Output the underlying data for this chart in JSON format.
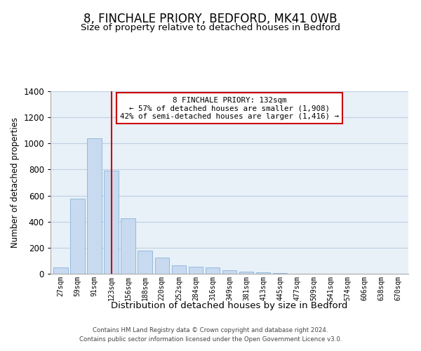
{
  "title": "8, FINCHALE PRIORY, BEDFORD, MK41 0WB",
  "subtitle": "Size of property relative to detached houses in Bedford",
  "xlabel": "Distribution of detached houses by size in Bedford",
  "ylabel": "Number of detached properties",
  "bar_labels": [
    "27sqm",
    "59sqm",
    "91sqm",
    "123sqm",
    "156sqm",
    "188sqm",
    "220sqm",
    "252sqm",
    "284sqm",
    "316sqm",
    "349sqm",
    "381sqm",
    "413sqm",
    "445sqm",
    "477sqm",
    "509sqm",
    "541sqm",
    "574sqm",
    "606sqm",
    "638sqm",
    "670sqm"
  ],
  "bar_values": [
    50,
    575,
    1040,
    790,
    425,
    178,
    125,
    65,
    55,
    50,
    25,
    18,
    10,
    5,
    2,
    0,
    0,
    0,
    0,
    0,
    0
  ],
  "bar_color": "#c8daf0",
  "bar_edgecolor": "#8ab4d8",
  "property_line_x": 3.0,
  "property_line_color": "#cc0000",
  "ylim": [
    0,
    1400
  ],
  "yticks": [
    0,
    200,
    400,
    600,
    800,
    1000,
    1200,
    1400
  ],
  "annotation_title": "8 FINCHALE PRIORY: 132sqm",
  "annotation_line1": "← 57% of detached houses are smaller (1,908)",
  "annotation_line2": "42% of semi-detached houses are larger (1,416) →",
  "annotation_box_color": "#ffffff",
  "annotation_box_edgecolor": "#cc0000",
  "footer_line1": "Contains HM Land Registry data © Crown copyright and database right 2024.",
  "footer_line2": "Contains public sector information licensed under the Open Government Licence v3.0.",
  "background_color": "#ffffff",
  "plot_bg_color": "#e8f0f8",
  "grid_color": "#c0d0e4"
}
